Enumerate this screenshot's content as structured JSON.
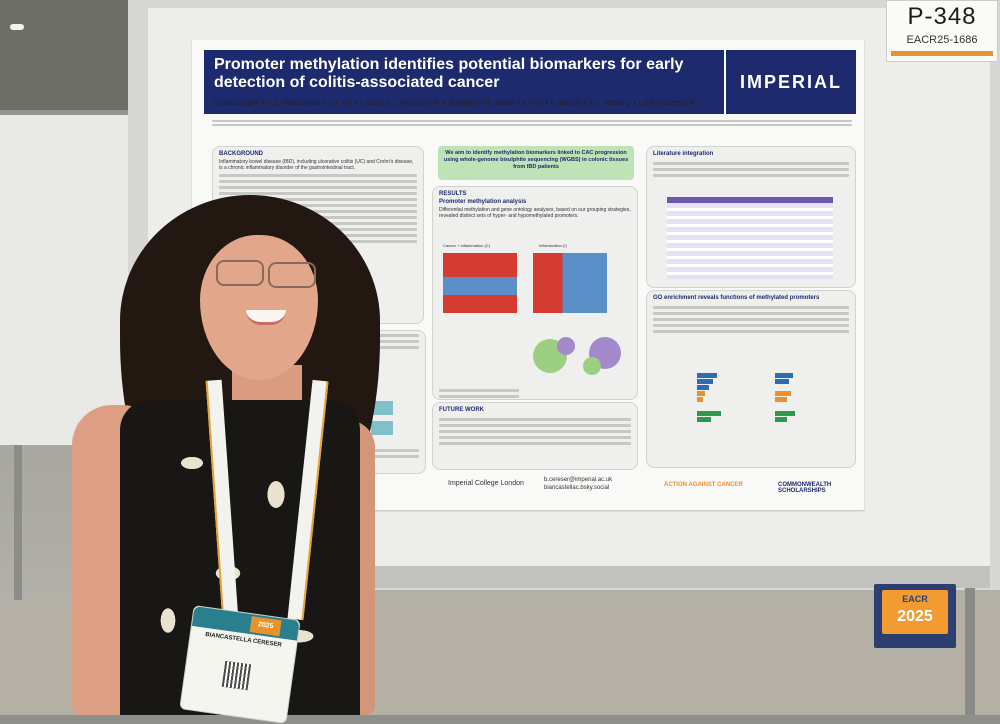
{
  "board": {
    "number": "P-348",
    "code": "EACR25-1686"
  },
  "poster": {
    "title": "Promoter methylation identifies potential biomarkers for early detection of colitis-associated cancer",
    "logo": "IMPERIAL",
    "authors": "Chandrasinghe P 1,2, Warusavitarne J 3, Yiu A 3, Daya O 1, Moorghen M 4, Spaggiari P 5, Maroli A 5, Hart A 6, Spinelli A 5,7, Stebbing J 1,8 and Cereser B 1",
    "aim": "We aim to identify methylation biomarkers linked to CAC progression using whole-genome bisulphite sequencing (WGBS) in colonic tissues from IBD patients",
    "background": {
      "heading": "BACKGROUND",
      "text": "Inflammatory bowel disease (IBD), including ulcerative colitis (UC) and Crohn's disease, is a chronic inflammatory disorder of the gastrointestinal tract."
    },
    "results": {
      "heading": "RESULTS",
      "subheading": "Promoter methylation analysis",
      "text": "Differential methylation and gene ontology analyses, based on our grouping strategies, revealed distinct sets of hyper- and hypomethylated promoters.",
      "heatmap_left_label": "Cancer + Inflammation (C)",
      "heatmap_right_label": "Inflammation (I)"
    },
    "literature": {
      "heading": "Literature integration"
    },
    "go_enrichment": {
      "heading": "GO enrichment reveals functions of methylated promoters"
    },
    "future": {
      "heading": "FUTURE WORK"
    },
    "footer": {
      "institution": "Imperial College London",
      "email": "b.cereser@imperial.ac.uk",
      "social": "biancastellac.bsky.social"
    },
    "sponsors": [
      "ACTION AGAINST CANCER",
      "COMMONWEALTH SCHOLARSHIPS"
    ]
  },
  "badge": {
    "name": "BIANCASTELLA CERESER",
    "logo": "2025"
  },
  "stand": {
    "brand": "EACR",
    "year": "2025"
  },
  "colors": {
    "poster_header": "#1d2a6e",
    "aim_box": "#bde3b7",
    "accent_orange": "#e8922b"
  }
}
